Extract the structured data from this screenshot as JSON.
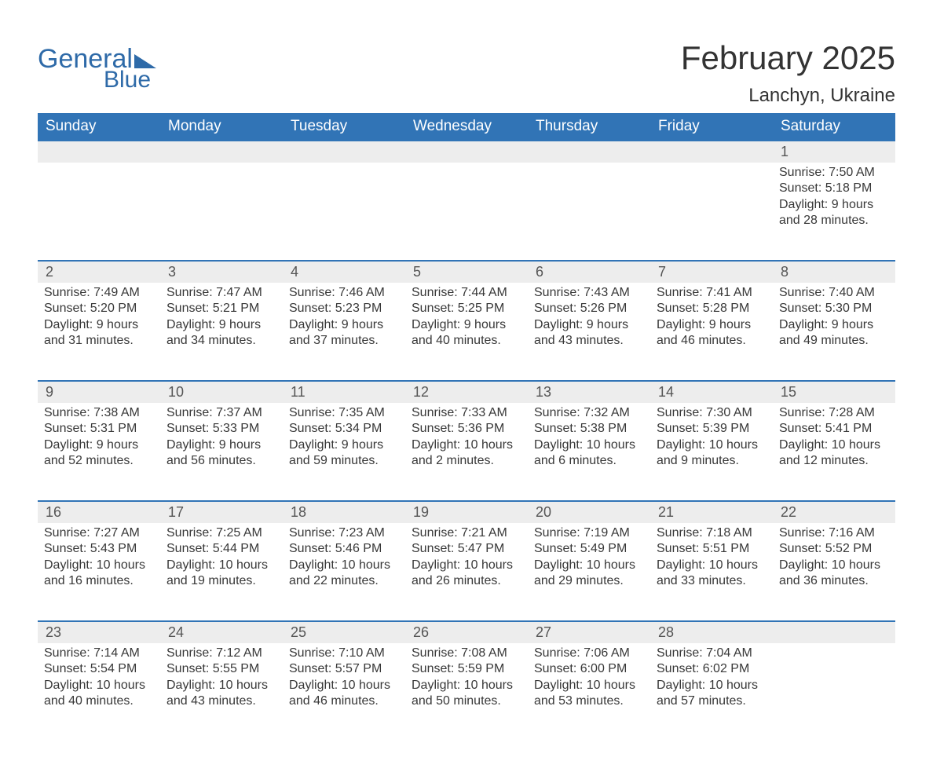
{
  "logo": {
    "word1": "General",
    "word2": "Blue"
  },
  "title": "February 2025",
  "location": "Lanchyn, Ukraine",
  "colors": {
    "header_bg": "#3174b6",
    "header_text": "#ffffff",
    "daynum_bg": "#ededed",
    "week_border": "#3174b6",
    "body_text": "#383838",
    "logo_color": "#2e6aa8"
  },
  "weekdays": [
    "Sunday",
    "Monday",
    "Tuesday",
    "Wednesday",
    "Thursday",
    "Friday",
    "Saturday"
  ],
  "weeks": [
    [
      null,
      null,
      null,
      null,
      null,
      null,
      {
        "n": "1",
        "sunrise": "Sunrise: 7:50 AM",
        "sunset": "Sunset: 5:18 PM",
        "dl1": "Daylight: 9 hours",
        "dl2": "and 28 minutes."
      }
    ],
    [
      {
        "n": "2",
        "sunrise": "Sunrise: 7:49 AM",
        "sunset": "Sunset: 5:20 PM",
        "dl1": "Daylight: 9 hours",
        "dl2": "and 31 minutes."
      },
      {
        "n": "3",
        "sunrise": "Sunrise: 7:47 AM",
        "sunset": "Sunset: 5:21 PM",
        "dl1": "Daylight: 9 hours",
        "dl2": "and 34 minutes."
      },
      {
        "n": "4",
        "sunrise": "Sunrise: 7:46 AM",
        "sunset": "Sunset: 5:23 PM",
        "dl1": "Daylight: 9 hours",
        "dl2": "and 37 minutes."
      },
      {
        "n": "5",
        "sunrise": "Sunrise: 7:44 AM",
        "sunset": "Sunset: 5:25 PM",
        "dl1": "Daylight: 9 hours",
        "dl2": "and 40 minutes."
      },
      {
        "n": "6",
        "sunrise": "Sunrise: 7:43 AM",
        "sunset": "Sunset: 5:26 PM",
        "dl1": "Daylight: 9 hours",
        "dl2": "and 43 minutes."
      },
      {
        "n": "7",
        "sunrise": "Sunrise: 7:41 AM",
        "sunset": "Sunset: 5:28 PM",
        "dl1": "Daylight: 9 hours",
        "dl2": "and 46 minutes."
      },
      {
        "n": "8",
        "sunrise": "Sunrise: 7:40 AM",
        "sunset": "Sunset: 5:30 PM",
        "dl1": "Daylight: 9 hours",
        "dl2": "and 49 minutes."
      }
    ],
    [
      {
        "n": "9",
        "sunrise": "Sunrise: 7:38 AM",
        "sunset": "Sunset: 5:31 PM",
        "dl1": "Daylight: 9 hours",
        "dl2": "and 52 minutes."
      },
      {
        "n": "10",
        "sunrise": "Sunrise: 7:37 AM",
        "sunset": "Sunset: 5:33 PM",
        "dl1": "Daylight: 9 hours",
        "dl2": "and 56 minutes."
      },
      {
        "n": "11",
        "sunrise": "Sunrise: 7:35 AM",
        "sunset": "Sunset: 5:34 PM",
        "dl1": "Daylight: 9 hours",
        "dl2": "and 59 minutes."
      },
      {
        "n": "12",
        "sunrise": "Sunrise: 7:33 AM",
        "sunset": "Sunset: 5:36 PM",
        "dl1": "Daylight: 10 hours",
        "dl2": "and 2 minutes."
      },
      {
        "n": "13",
        "sunrise": "Sunrise: 7:32 AM",
        "sunset": "Sunset: 5:38 PM",
        "dl1": "Daylight: 10 hours",
        "dl2": "and 6 minutes."
      },
      {
        "n": "14",
        "sunrise": "Sunrise: 7:30 AM",
        "sunset": "Sunset: 5:39 PM",
        "dl1": "Daylight: 10 hours",
        "dl2": "and 9 minutes."
      },
      {
        "n": "15",
        "sunrise": "Sunrise: 7:28 AM",
        "sunset": "Sunset: 5:41 PM",
        "dl1": "Daylight: 10 hours",
        "dl2": "and 12 minutes."
      }
    ],
    [
      {
        "n": "16",
        "sunrise": "Sunrise: 7:27 AM",
        "sunset": "Sunset: 5:43 PM",
        "dl1": "Daylight: 10 hours",
        "dl2": "and 16 minutes."
      },
      {
        "n": "17",
        "sunrise": "Sunrise: 7:25 AM",
        "sunset": "Sunset: 5:44 PM",
        "dl1": "Daylight: 10 hours",
        "dl2": "and 19 minutes."
      },
      {
        "n": "18",
        "sunrise": "Sunrise: 7:23 AM",
        "sunset": "Sunset: 5:46 PM",
        "dl1": "Daylight: 10 hours",
        "dl2": "and 22 minutes."
      },
      {
        "n": "19",
        "sunrise": "Sunrise: 7:21 AM",
        "sunset": "Sunset: 5:47 PM",
        "dl1": "Daylight: 10 hours",
        "dl2": "and 26 minutes."
      },
      {
        "n": "20",
        "sunrise": "Sunrise: 7:19 AM",
        "sunset": "Sunset: 5:49 PM",
        "dl1": "Daylight: 10 hours",
        "dl2": "and 29 minutes."
      },
      {
        "n": "21",
        "sunrise": "Sunrise: 7:18 AM",
        "sunset": "Sunset: 5:51 PM",
        "dl1": "Daylight: 10 hours",
        "dl2": "and 33 minutes."
      },
      {
        "n": "22",
        "sunrise": "Sunrise: 7:16 AM",
        "sunset": "Sunset: 5:52 PM",
        "dl1": "Daylight: 10 hours",
        "dl2": "and 36 minutes."
      }
    ],
    [
      {
        "n": "23",
        "sunrise": "Sunrise: 7:14 AM",
        "sunset": "Sunset: 5:54 PM",
        "dl1": "Daylight: 10 hours",
        "dl2": "and 40 minutes."
      },
      {
        "n": "24",
        "sunrise": "Sunrise: 7:12 AM",
        "sunset": "Sunset: 5:55 PM",
        "dl1": "Daylight: 10 hours",
        "dl2": "and 43 minutes."
      },
      {
        "n": "25",
        "sunrise": "Sunrise: 7:10 AM",
        "sunset": "Sunset: 5:57 PM",
        "dl1": "Daylight: 10 hours",
        "dl2": "and 46 minutes."
      },
      {
        "n": "26",
        "sunrise": "Sunrise: 7:08 AM",
        "sunset": "Sunset: 5:59 PM",
        "dl1": "Daylight: 10 hours",
        "dl2": "and 50 minutes."
      },
      {
        "n": "27",
        "sunrise": "Sunrise: 7:06 AM",
        "sunset": "Sunset: 6:00 PM",
        "dl1": "Daylight: 10 hours",
        "dl2": "and 53 minutes."
      },
      {
        "n": "28",
        "sunrise": "Sunrise: 7:04 AM",
        "sunset": "Sunset: 6:02 PM",
        "dl1": "Daylight: 10 hours",
        "dl2": "and 57 minutes."
      },
      null
    ]
  ]
}
